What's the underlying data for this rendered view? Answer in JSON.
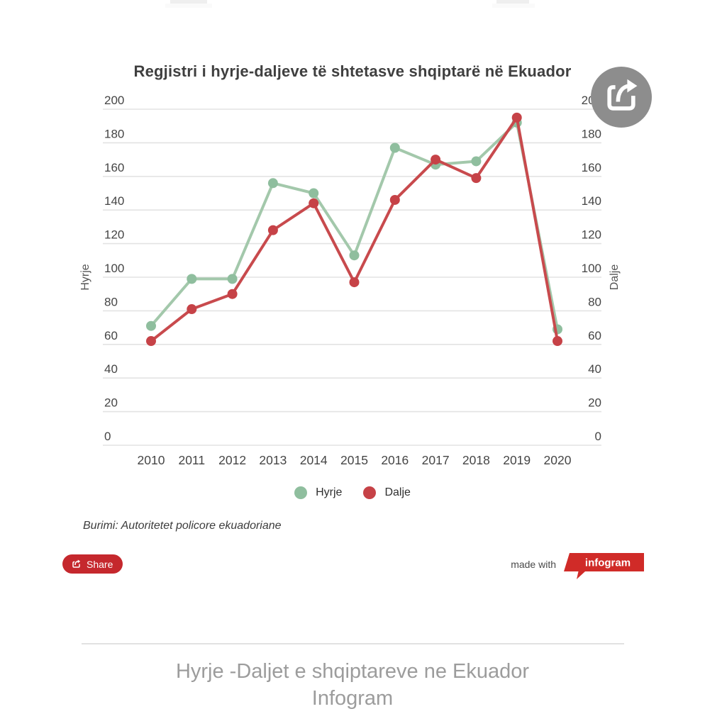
{
  "header": {
    "title": "Regjistri i hyrje-daljeve të shtetasve shqiptarë në Ekuador"
  },
  "source": {
    "text": "Burimi: Autoritetet policore ekuadoriane"
  },
  "share_button": {
    "label": "Share"
  },
  "made_with": {
    "label": "made with",
    "brand": "infogram"
  },
  "footer": {
    "line1": "Hyrje -Daljet e shqiptareve ne Ekuador",
    "line2": "Infogram"
  },
  "colors": {
    "hyrje_line": "#a3c8ab",
    "hyrje_dot": "#8fbe9e",
    "dalje_line": "#c84a4d",
    "dalje_dot": "#c64247",
    "grid": "#e3e3e3",
    "tick_text": "#454545",
    "axis_title_text": "#555555",
    "fab_gray": "#8d8d8d",
    "share_red": "#c5282d",
    "infogram_red": "#d02b28"
  },
  "chart_data": {
    "type": "line",
    "title": "Regjistri i hyrje-daljeve të shtetasve shqiptarë në Ekuador",
    "categories": [
      "2010",
      "2011",
      "2012",
      "2013",
      "2014",
      "2015",
      "2016",
      "2017",
      "2018",
      "2019",
      "2020"
    ],
    "series": [
      {
        "name": "Hyrje",
        "color": "#a3c8ab",
        "dot_color": "#8fbe9e",
        "values": [
          71,
          99,
          99,
          156,
          150,
          113,
          177,
          167,
          169,
          192,
          69
        ]
      },
      {
        "name": "Dalje",
        "color": "#c84a4d",
        "dot_color": "#c64247",
        "values": [
          62,
          81,
          90,
          128,
          144,
          97,
          146,
          170,
          159,
          195,
          62
        ]
      }
    ],
    "ylabel_left": "Hyrje",
    "ylabel_right": "Dalje",
    "ylim": [
      0,
      200
    ],
    "yticks": [
      0,
      20,
      40,
      60,
      80,
      100,
      120,
      140,
      160,
      180,
      200
    ],
    "grid": true,
    "legend_position": "bottom",
    "source_note": "Burimi: Autoritetet policore ekuadoriane"
  }
}
